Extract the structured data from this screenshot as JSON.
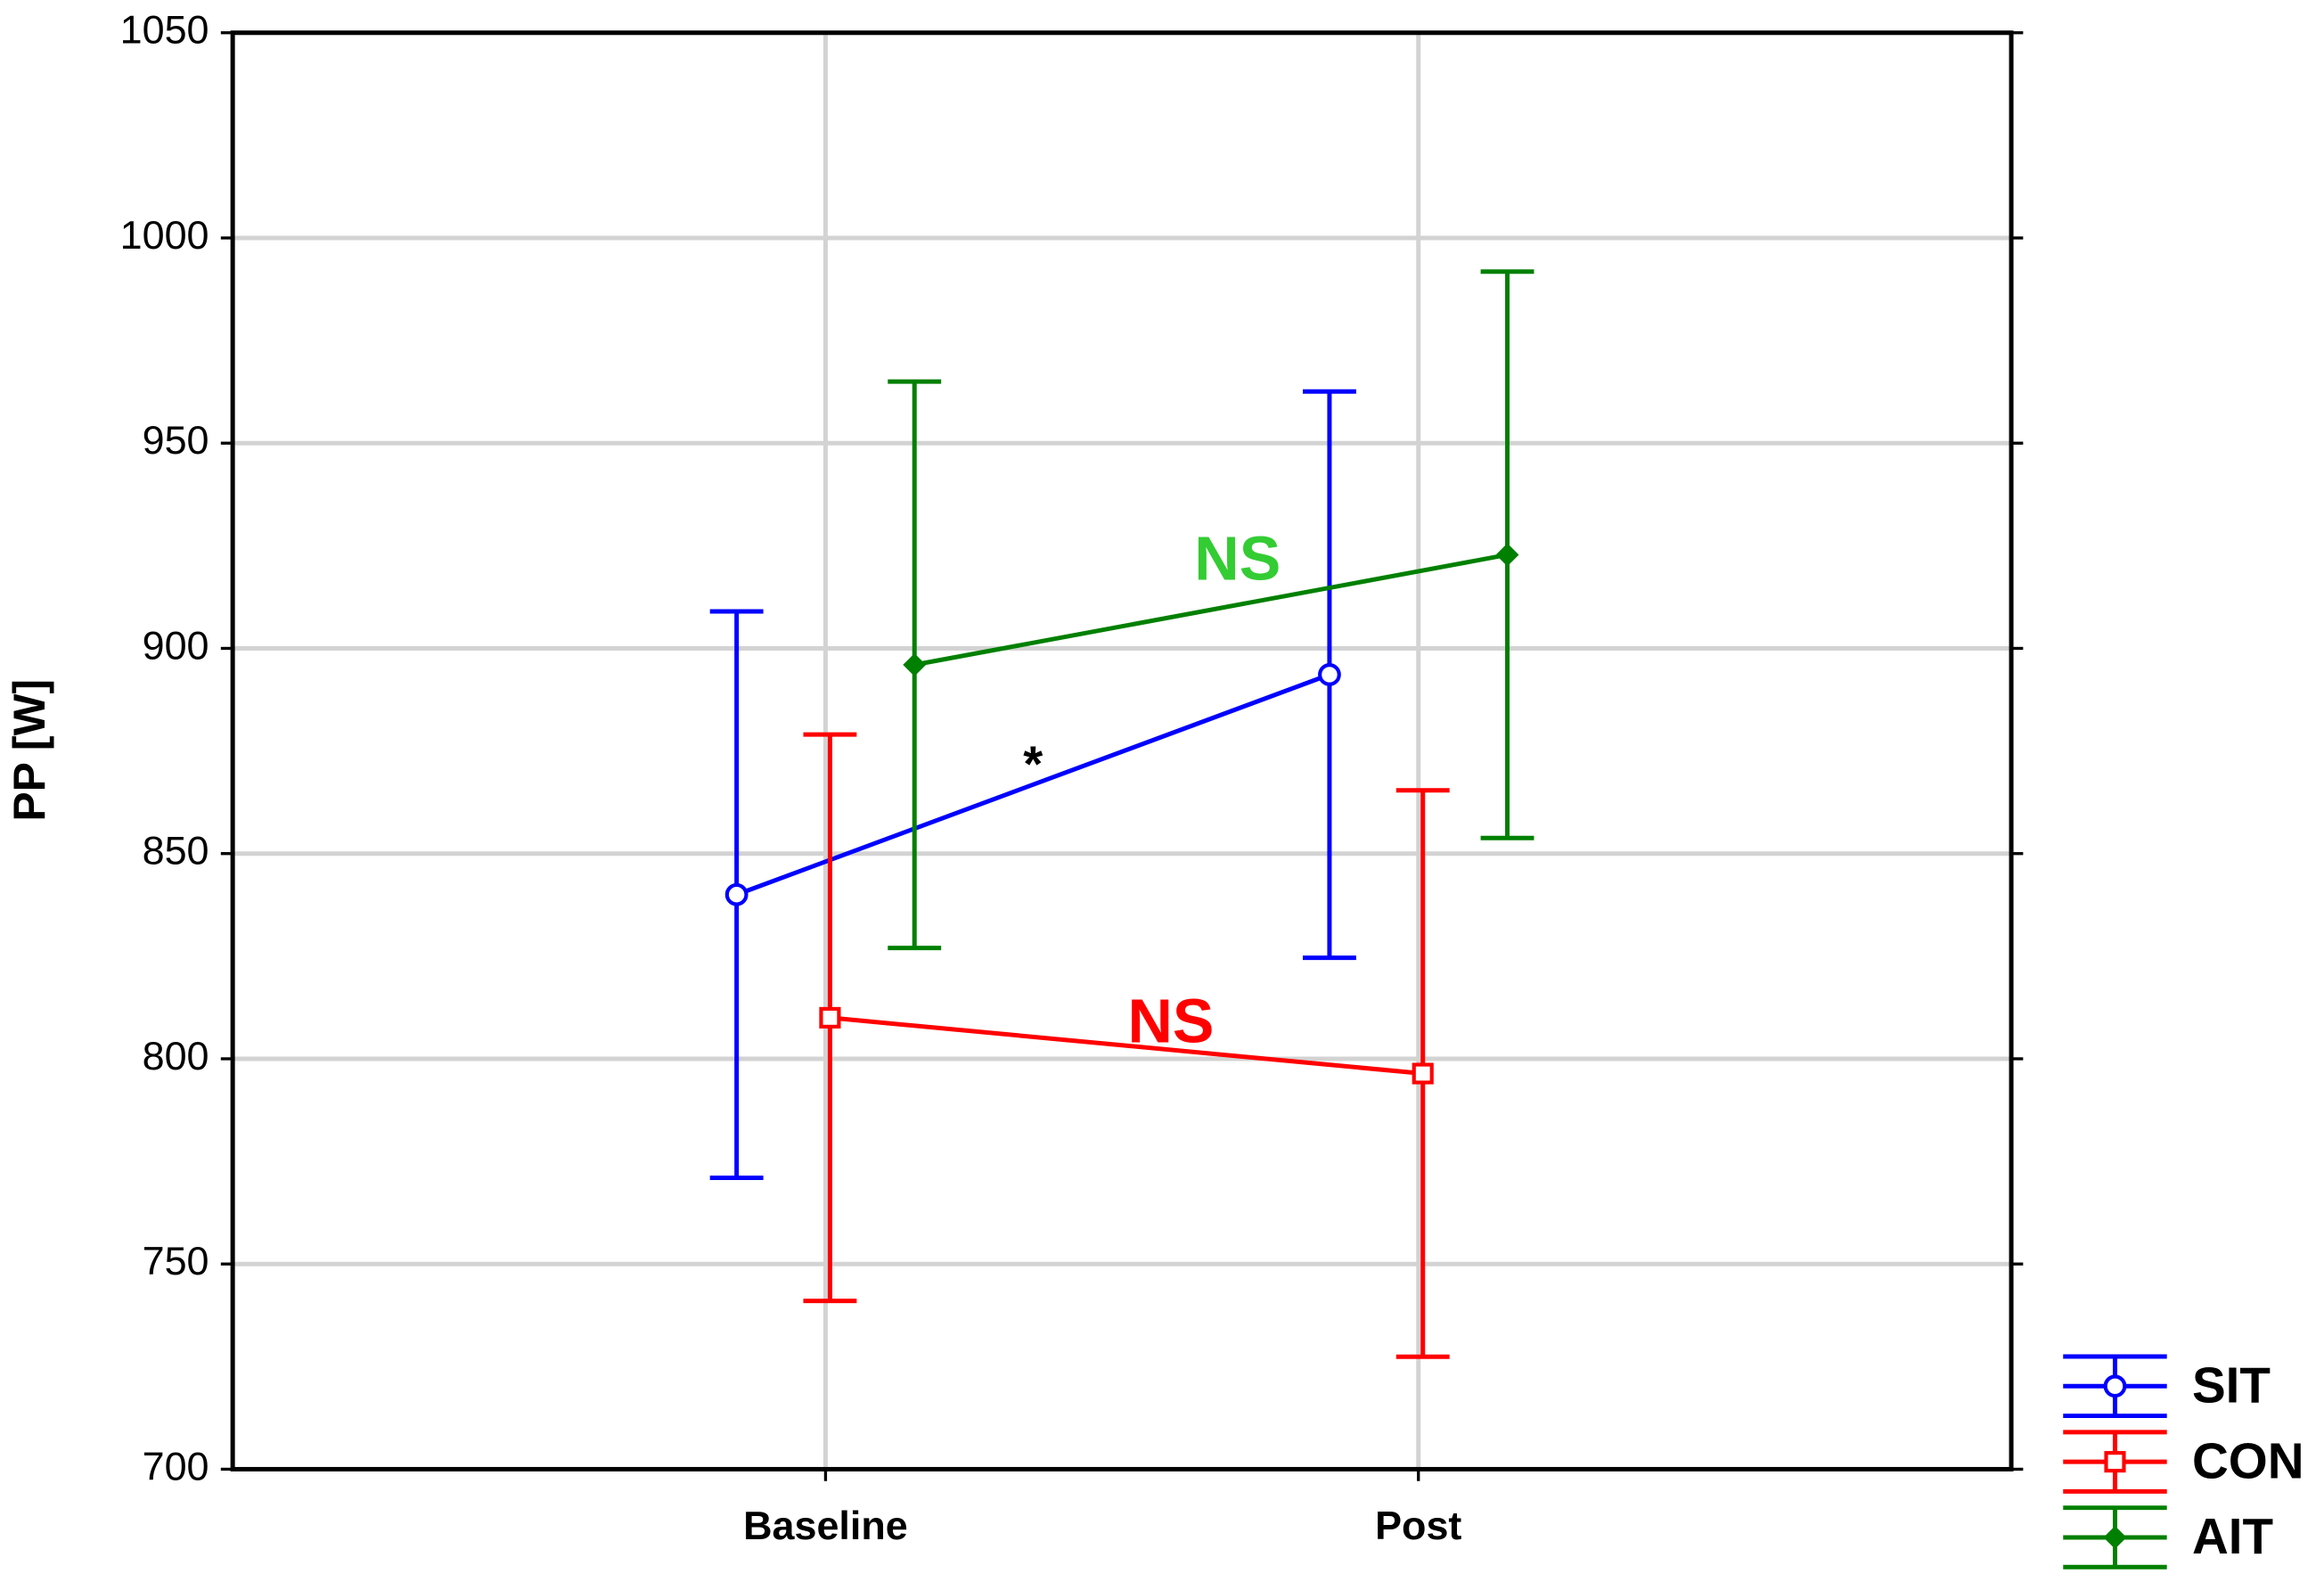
{
  "chart_data": {
    "type": "line",
    "y_label": "PP [W]",
    "categories": [
      "Baseline",
      "Post"
    ],
    "series": [
      {
        "name": "SIT",
        "color": "#0000ff",
        "marker": "circle",
        "values": [
          840,
          893.6
        ],
        "errors": [
          69,
          69
        ]
      },
      {
        "name": "CON",
        "color": "#ff0000",
        "marker": "square",
        "values": [
          810,
          796.4
        ],
        "errors": [
          69,
          69
        ]
      },
      {
        "name": "AIT",
        "color": "#008000",
        "marker": "diamond",
        "values": [
          896,
          922.8
        ],
        "errors": [
          69,
          69
        ]
      }
    ],
    "annotations": [
      {
        "text": "NS",
        "color": "#33cc33"
      },
      {
        "text": "*",
        "color": "#000000"
      },
      {
        "text": "NS",
        "color": "#ff0000"
      }
    ],
    "ylim": [
      700,
      1050
    ],
    "yticks": [
      700,
      750,
      800,
      850,
      900,
      950,
      1000,
      1050
    ],
    "grid": true,
    "legend": "bottom-right"
  }
}
